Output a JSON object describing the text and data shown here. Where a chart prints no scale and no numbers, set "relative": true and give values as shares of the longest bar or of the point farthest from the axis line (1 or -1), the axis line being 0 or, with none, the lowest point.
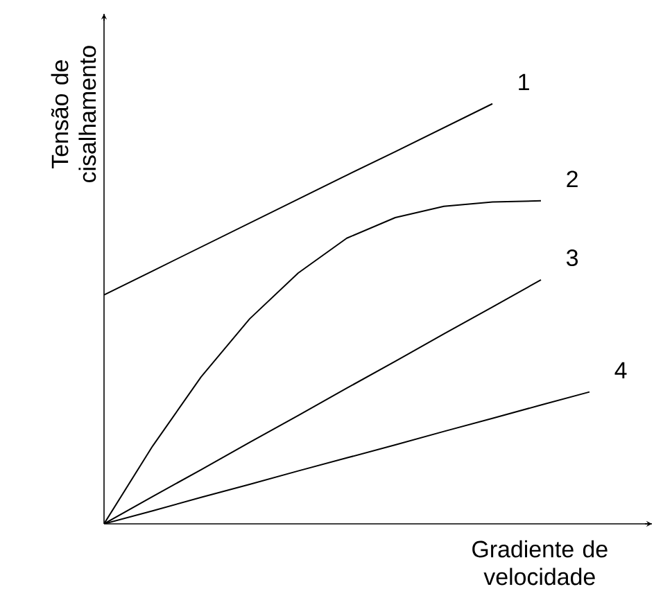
{
  "chart_data": {
    "type": "line",
    "relative": true,
    "xlabel": "Gradiente de velocidade",
    "ylabel": "Tensão de cisalhamento",
    "legend": false,
    "marker": "none",
    "line_style": "solid",
    "categories": [
      null,
      null,
      null,
      null,
      null,
      null,
      null,
      null,
      null,
      null,
      null
    ],
    "series": [
      {
        "name": "1",
        "color": "#000000",
        "values": [
          0.545,
          0.602,
          0.659,
          0.716,
          0.773,
          0.83,
          0.886,
          0.943,
          1.0,
          null,
          null
        ]
      },
      {
        "name": "2",
        "color": "#000000",
        "values": [
          0,
          0.185,
          0.35,
          0.488,
          0.597,
          0.68,
          0.729,
          0.756,
          0.766,
          0.769,
          null
        ]
      },
      {
        "name": "3",
        "color": "#000000",
        "values": [
          0,
          0.065,
          0.129,
          0.194,
          0.258,
          0.323,
          0.387,
          0.452,
          0.516,
          0.581,
          null
        ]
      },
      {
        "name": "4",
        "color": "#000000",
        "values": [
          0,
          0.031,
          0.063,
          0.094,
          0.126,
          0.157,
          0.188,
          0.22,
          0.251,
          0.283,
          0.314
        ]
      }
    ]
  }
}
